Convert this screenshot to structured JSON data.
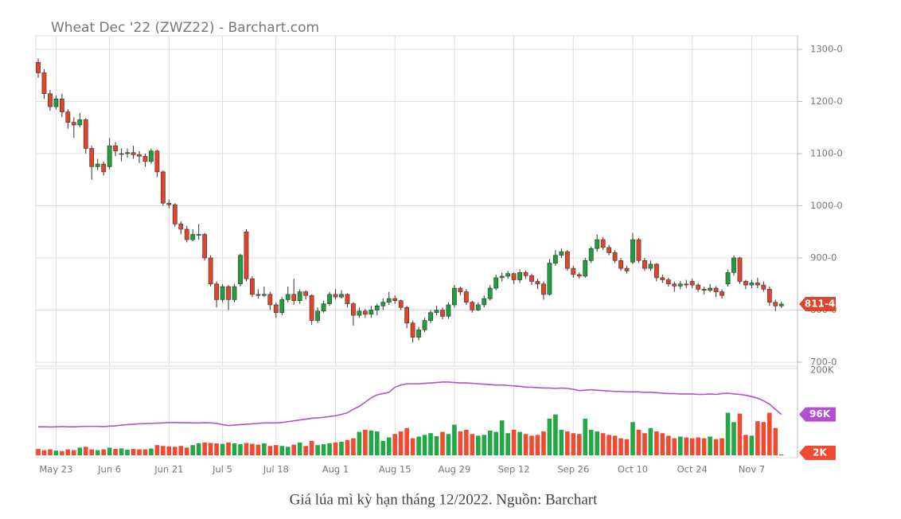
{
  "chart_data": {
    "type": "candlestick",
    "title": "Wheat Dec '22 (ZWZ22) - Barchart.com",
    "categories": [
      null,
      null,
      null,
      "May 23",
      null,
      null,
      null,
      null,
      null,
      null,
      null,
      null,
      "Jun 6",
      null,
      null,
      null,
      null,
      null,
      null,
      null,
      null,
      null,
      "Jun 21",
      null,
      null,
      null,
      null,
      null,
      null,
      null,
      null,
      "Jul 5",
      null,
      null,
      null,
      null,
      null,
      null,
      null,
      null,
      "Jul 18",
      null,
      null,
      null,
      null,
      null,
      null,
      null,
      null,
      null,
      "Aug 1",
      null,
      null,
      null,
      null,
      null,
      null,
      null,
      null,
      null,
      "Aug 15",
      null,
      null,
      null,
      null,
      null,
      null,
      null,
      null,
      null,
      "Aug 29",
      null,
      null,
      null,
      null,
      null,
      null,
      null,
      null,
      null,
      "Sep 12",
      null,
      null,
      null,
      null,
      null,
      null,
      null,
      null,
      null,
      "Sep 26",
      null,
      null,
      null,
      null,
      null,
      null,
      null,
      null,
      null,
      "Oct 10",
      null,
      null,
      null,
      null,
      null,
      null,
      null,
      null,
      null,
      "Oct 24",
      null,
      null,
      null,
      null,
      null,
      null,
      null,
      null,
      null,
      "Nov 7",
      null,
      null,
      null,
      null,
      null
    ],
    "ohlc": [
      [
        1275,
        1282,
        1245,
        1255
      ],
      [
        1255,
        1262,
        1205,
        1215
      ],
      [
        1215,
        1222,
        1182,
        1190
      ],
      [
        1190,
        1212,
        1185,
        1205
      ],
      [
        1205,
        1215,
        1170,
        1180
      ],
      [
        1180,
        1185,
        1148,
        1160
      ],
      [
        1160,
        1170,
        1130,
        1155
      ],
      [
        1155,
        1178,
        1150,
        1165
      ],
      [
        1165,
        1168,
        1100,
        1110
      ],
      [
        1110,
        1115,
        1050,
        1075
      ],
      [
        1075,
        1090,
        1068,
        1080
      ],
      [
        1080,
        1085,
        1058,
        1065
      ],
      [
        1075,
        1130,
        1070,
        1115
      ],
      [
        1115,
        1122,
        1095,
        1105
      ],
      [
        1100,
        1110,
        1085,
        1100
      ],
      [
        1100,
        1110,
        1092,
        1102
      ],
      [
        1102,
        1115,
        1090,
        1098
      ],
      [
        1098,
        1105,
        1082,
        1095
      ],
      [
        1095,
        1100,
        1075,
        1085
      ],
      [
        1085,
        1110,
        1080,
        1105
      ],
      [
        1105,
        1108,
        1055,
        1065
      ],
      [
        1065,
        1068,
        1000,
        1005
      ],
      [
        1005,
        1012,
        995,
        1002
      ],
      [
        1002,
        1005,
        960,
        965
      ],
      [
        965,
        970,
        945,
        955
      ],
      [
        955,
        962,
        930,
        935
      ],
      [
        935,
        955,
        932,
        945
      ],
      [
        945,
        965,
        935,
        945
      ],
      [
        945,
        948,
        895,
        900
      ],
      [
        900,
        905,
        845,
        850
      ],
      [
        850,
        855,
        805,
        820
      ],
      [
        820,
        850,
        815,
        845
      ],
      [
        845,
        848,
        800,
        820
      ],
      [
        820,
        850,
        815,
        845
      ],
      [
        850,
        908,
        845,
        905
      ],
      [
        950,
        955,
        855,
        860
      ],
      [
        860,
        865,
        825,
        830
      ],
      [
        830,
        840,
        822,
        828
      ],
      [
        828,
        845,
        825,
        830
      ],
      [
        830,
        835,
        800,
        810
      ],
      [
        810,
        815,
        785,
        795
      ],
      [
        795,
        825,
        790,
        820
      ],
      [
        820,
        845,
        815,
        830
      ],
      [
        830,
        860,
        810,
        818
      ],
      [
        818,
        840,
        812,
        835
      ],
      [
        835,
        838,
        820,
        828
      ],
      [
        828,
        830,
        772,
        780
      ],
      [
        780,
        805,
        775,
        798
      ],
      [
        798,
        818,
        795,
        812
      ],
      [
        812,
        835,
        808,
        830
      ],
      [
        830,
        840,
        820,
        825
      ],
      [
        825,
        838,
        822,
        830
      ],
      [
        830,
        832,
        805,
        812
      ],
      [
        812,
        815,
        770,
        790
      ],
      [
        790,
        805,
        785,
        798
      ],
      [
        798,
        802,
        785,
        792
      ],
      [
        792,
        808,
        785,
        800
      ],
      [
        800,
        812,
        790,
        808
      ],
      [
        808,
        822,
        800,
        815
      ],
      [
        815,
        835,
        810,
        822
      ],
      [
        822,
        828,
        812,
        818
      ],
      [
        818,
        820,
        800,
        805
      ],
      [
        805,
        808,
        765,
        775
      ],
      [
        775,
        780,
        738,
        748
      ],
      [
        748,
        768,
        742,
        762
      ],
      [
        762,
        785,
        758,
        780
      ],
      [
        780,
        800,
        775,
        795
      ],
      [
        795,
        808,
        790,
        800
      ],
      [
        800,
        805,
        782,
        788
      ],
      [
        788,
        815,
        783,
        810
      ],
      [
        810,
        848,
        805,
        842
      ],
      [
        842,
        845,
        828,
        835
      ],
      [
        835,
        840,
        810,
        815
      ],
      [
        815,
        818,
        795,
        800
      ],
      [
        800,
        815,
        798,
        810
      ],
      [
        810,
        828,
        805,
        822
      ],
      [
        822,
        848,
        818,
        842
      ],
      [
        842,
        868,
        838,
        862
      ],
      [
        862,
        872,
        855,
        865
      ],
      [
        865,
        875,
        860,
        870
      ],
      [
        870,
        872,
        850,
        858
      ],
      [
        858,
        878,
        852,
        872
      ],
      [
        872,
        876,
        860,
        866
      ],
      [
        866,
        870,
        848,
        855
      ],
      [
        855,
        860,
        840,
        850
      ],
      [
        850,
        855,
        820,
        830
      ],
      [
        830,
        898,
        828,
        890
      ],
      [
        890,
        915,
        885,
        905
      ],
      [
        905,
        918,
        900,
        912
      ],
      [
        912,
        915,
        875,
        880
      ],
      [
        880,
        885,
        862,
        868
      ],
      [
        868,
        872,
        860,
        865
      ],
      [
        865,
        900,
        862,
        895
      ],
      [
        895,
        922,
        890,
        918
      ],
      [
        918,
        945,
        912,
        935
      ],
      [
        935,
        940,
        915,
        920
      ],
      [
        920,
        925,
        905,
        910
      ],
      [
        910,
        915,
        890,
        895
      ],
      [
        895,
        900,
        875,
        880
      ],
      [
        880,
        885,
        870,
        875
      ],
      [
        892,
        948,
        888,
        935
      ],
      [
        935,
        938,
        890,
        895
      ],
      [
        895,
        900,
        875,
        880
      ],
      [
        880,
        895,
        875,
        888
      ],
      [
        888,
        890,
        855,
        862
      ],
      [
        862,
        868,
        852,
        858
      ],
      [
        858,
        862,
        845,
        850
      ],
      [
        850,
        855,
        835,
        846
      ],
      [
        846,
        856,
        840,
        850
      ],
      [
        850,
        858,
        842,
        848
      ],
      [
        855,
        860,
        842,
        848
      ],
      [
        848,
        852,
        835,
        840
      ],
      [
        840,
        845,
        830,
        838
      ],
      [
        838,
        850,
        834,
        842
      ],
      [
        842,
        846,
        825,
        835
      ],
      [
        835,
        840,
        822,
        828
      ],
      [
        850,
        878,
        845,
        872
      ],
      [
        872,
        905,
        866,
        900
      ],
      [
        900,
        902,
        850,
        855
      ],
      [
        855,
        858,
        840,
        848
      ],
      [
        848,
        858,
        842,
        852
      ],
      [
        852,
        862,
        842,
        848
      ],
      [
        848,
        855,
        835,
        840
      ],
      [
        840,
        845,
        808,
        815
      ],
      [
        815,
        820,
        798,
        808
      ],
      [
        808,
        816,
        804,
        811.5
      ]
    ],
    "up_color": "#1f9e3c",
    "down_color": "#e0452c",
    "ylim": [
      700,
      1300
    ],
    "yticks": [
      {
        "value": 700,
        "label": "700-0"
      },
      {
        "value": 800,
        "label": "800-0"
      },
      {
        "value": 900,
        "label": "900-0"
      },
      {
        "value": 1000,
        "label": "1000-0"
      },
      {
        "value": 1100,
        "label": "1100-0"
      },
      {
        "value": 1200,
        "label": "1200-0"
      },
      {
        "value": 1300,
        "label": "1300-0"
      }
    ],
    "volume": [
      15000,
      12000,
      14000,
      11000,
      10000,
      14000,
      12000,
      18000,
      20000,
      14000,
      12000,
      14000,
      18000,
      15000,
      16000,
      13000,
      15000,
      14000,
      14000,
      16000,
      24000,
      22000,
      21000,
      20000,
      22000,
      18000,
      24000,
      28000,
      30000,
      29000,
      28000,
      27000,
      30000,
      28000,
      26000,
      29000,
      27000,
      25000,
      28000,
      22000,
      24000,
      22000,
      20000,
      25000,
      30000,
      22000,
      34000,
      24000,
      26000,
      28000,
      30000,
      32000,
      36000,
      40000,
      55000,
      60000,
      58000,
      56000,
      34000,
      42000,
      50000,
      56000,
      64000,
      40000,
      44000,
      48000,
      52000,
      45000,
      55000,
      50000,
      72000,
      56000,
      60000,
      50000,
      46000,
      48000,
      58000,
      55000,
      82000,
      52000,
      60000,
      55000,
      50000,
      46000,
      48000,
      56000,
      86000,
      96000,
      60000,
      56000,
      52000,
      50000,
      86000,
      60000,
      56000,
      52000,
      48000,
      46000,
      40000,
      38000,
      78000,
      60000,
      52000,
      64000,
      56000,
      52000,
      46000,
      40000,
      44000,
      42000,
      40000,
      42000,
      40000,
      44000,
      38000,
      40000,
      100000,
      78000,
      98000,
      48000,
      46000,
      80000,
      78000,
      100000,
      64000,
      2000
    ],
    "open_interest": [
      67000,
      67000,
      66500,
      67000,
      67500,
      67000,
      67000,
      67500,
      68000,
      68000,
      68000,
      67500,
      68500,
      69000,
      71000,
      72000,
      73000,
      74000,
      74500,
      75000,
      75500,
      76000,
      77000,
      77000,
      76500,
      76500,
      76000,
      76000,
      76500,
      76000,
      75000,
      72000,
      70000,
      71000,
      72000,
      73000,
      74000,
      75000,
      76000,
      76000,
      76000,
      77000,
      79000,
      81000,
      83000,
      85000,
      87000,
      88000,
      89000,
      91000,
      93000,
      96000,
      100000,
      108000,
      115000,
      125000,
      135000,
      142000,
      145000,
      148000,
      160000,
      165000,
      168000,
      168000,
      168000,
      169000,
      170000,
      171000,
      172000,
      172000,
      171000,
      170000,
      170000,
      169000,
      168000,
      167000,
      166000,
      165000,
      165000,
      164000,
      163000,
      162000,
      160000,
      160000,
      159000,
      158000,
      158000,
      157000,
      158000,
      157000,
      155000,
      152000,
      153000,
      154000,
      153000,
      152000,
      151000,
      150000,
      150000,
      149000,
      149000,
      149000,
      148000,
      148000,
      147000,
      146000,
      145000,
      145000,
      144000,
      144000,
      144000,
      143000,
      143000,
      144000,
      143000,
      145000,
      146000,
      144000,
      143000,
      141000,
      138000,
      134000,
      128000,
      120000,
      108000,
      96000
    ],
    "open_interest_color": "#b34fd1",
    "y2lim": [
      0,
      200000
    ],
    "y2ticks": [
      {
        "value": 200000,
        "label": "200K"
      }
    ],
    "grid": true,
    "price_badge": {
      "value": 811.5,
      "label": "811-4"
    },
    "open_interest_badge": {
      "value": 96000,
      "label": "96K"
    },
    "volume_badge": {
      "value": 2000,
      "label": "2K"
    }
  },
  "caption": "Giá lúa mì kỳ hạn tháng 12/2022. Nguồn: Barchart"
}
